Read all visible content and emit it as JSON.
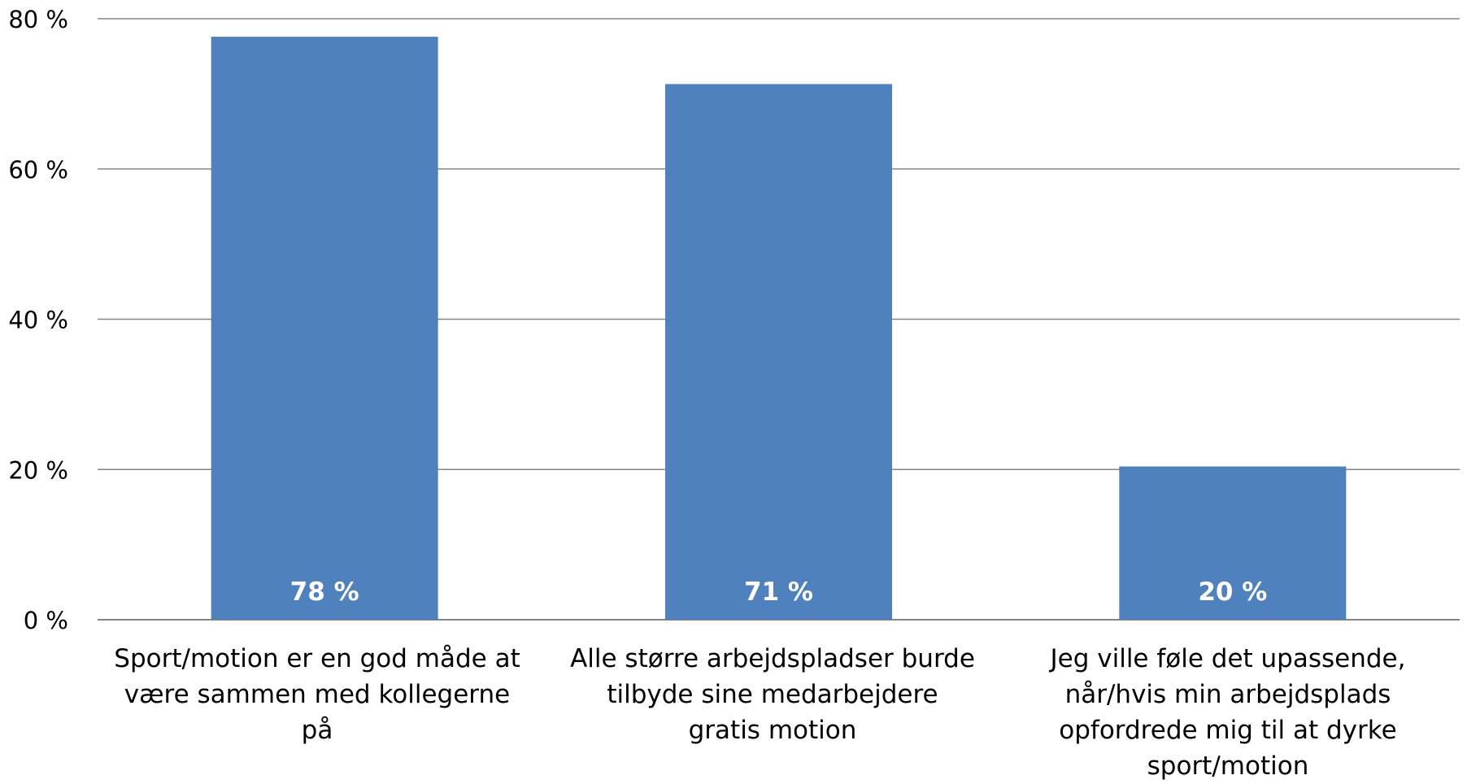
{
  "chart_data": {
    "type": "bar",
    "title": "",
    "xlabel": "",
    "ylabel": "",
    "categories": [
      "Sport/motion er en god måde at være sammen med kollegerne på",
      "Alle større arbejdspladser burde tilbyde sine medarbejdere gratis motion",
      "Jeg ville føle det upassende, når/hvis min arbejdsplads opfordrede mig til at dyrke sport/motion"
    ],
    "values": [
      77.6,
      71.3,
      20.4
    ],
    "data_labels": [
      "78 %",
      "71 %",
      "20 %"
    ],
    "ylim": [
      0,
      80
    ],
    "yticks": [
      0,
      20,
      40,
      60,
      80
    ],
    "ytick_labels": [
      "0 %",
      "20 %",
      "40 %",
      "60 %",
      "80 %"
    ],
    "grid": true,
    "legend": "none",
    "bar_color": "#4f81bd",
    "gridline_color": "#868686",
    "data_label_color": "#ffffff"
  }
}
